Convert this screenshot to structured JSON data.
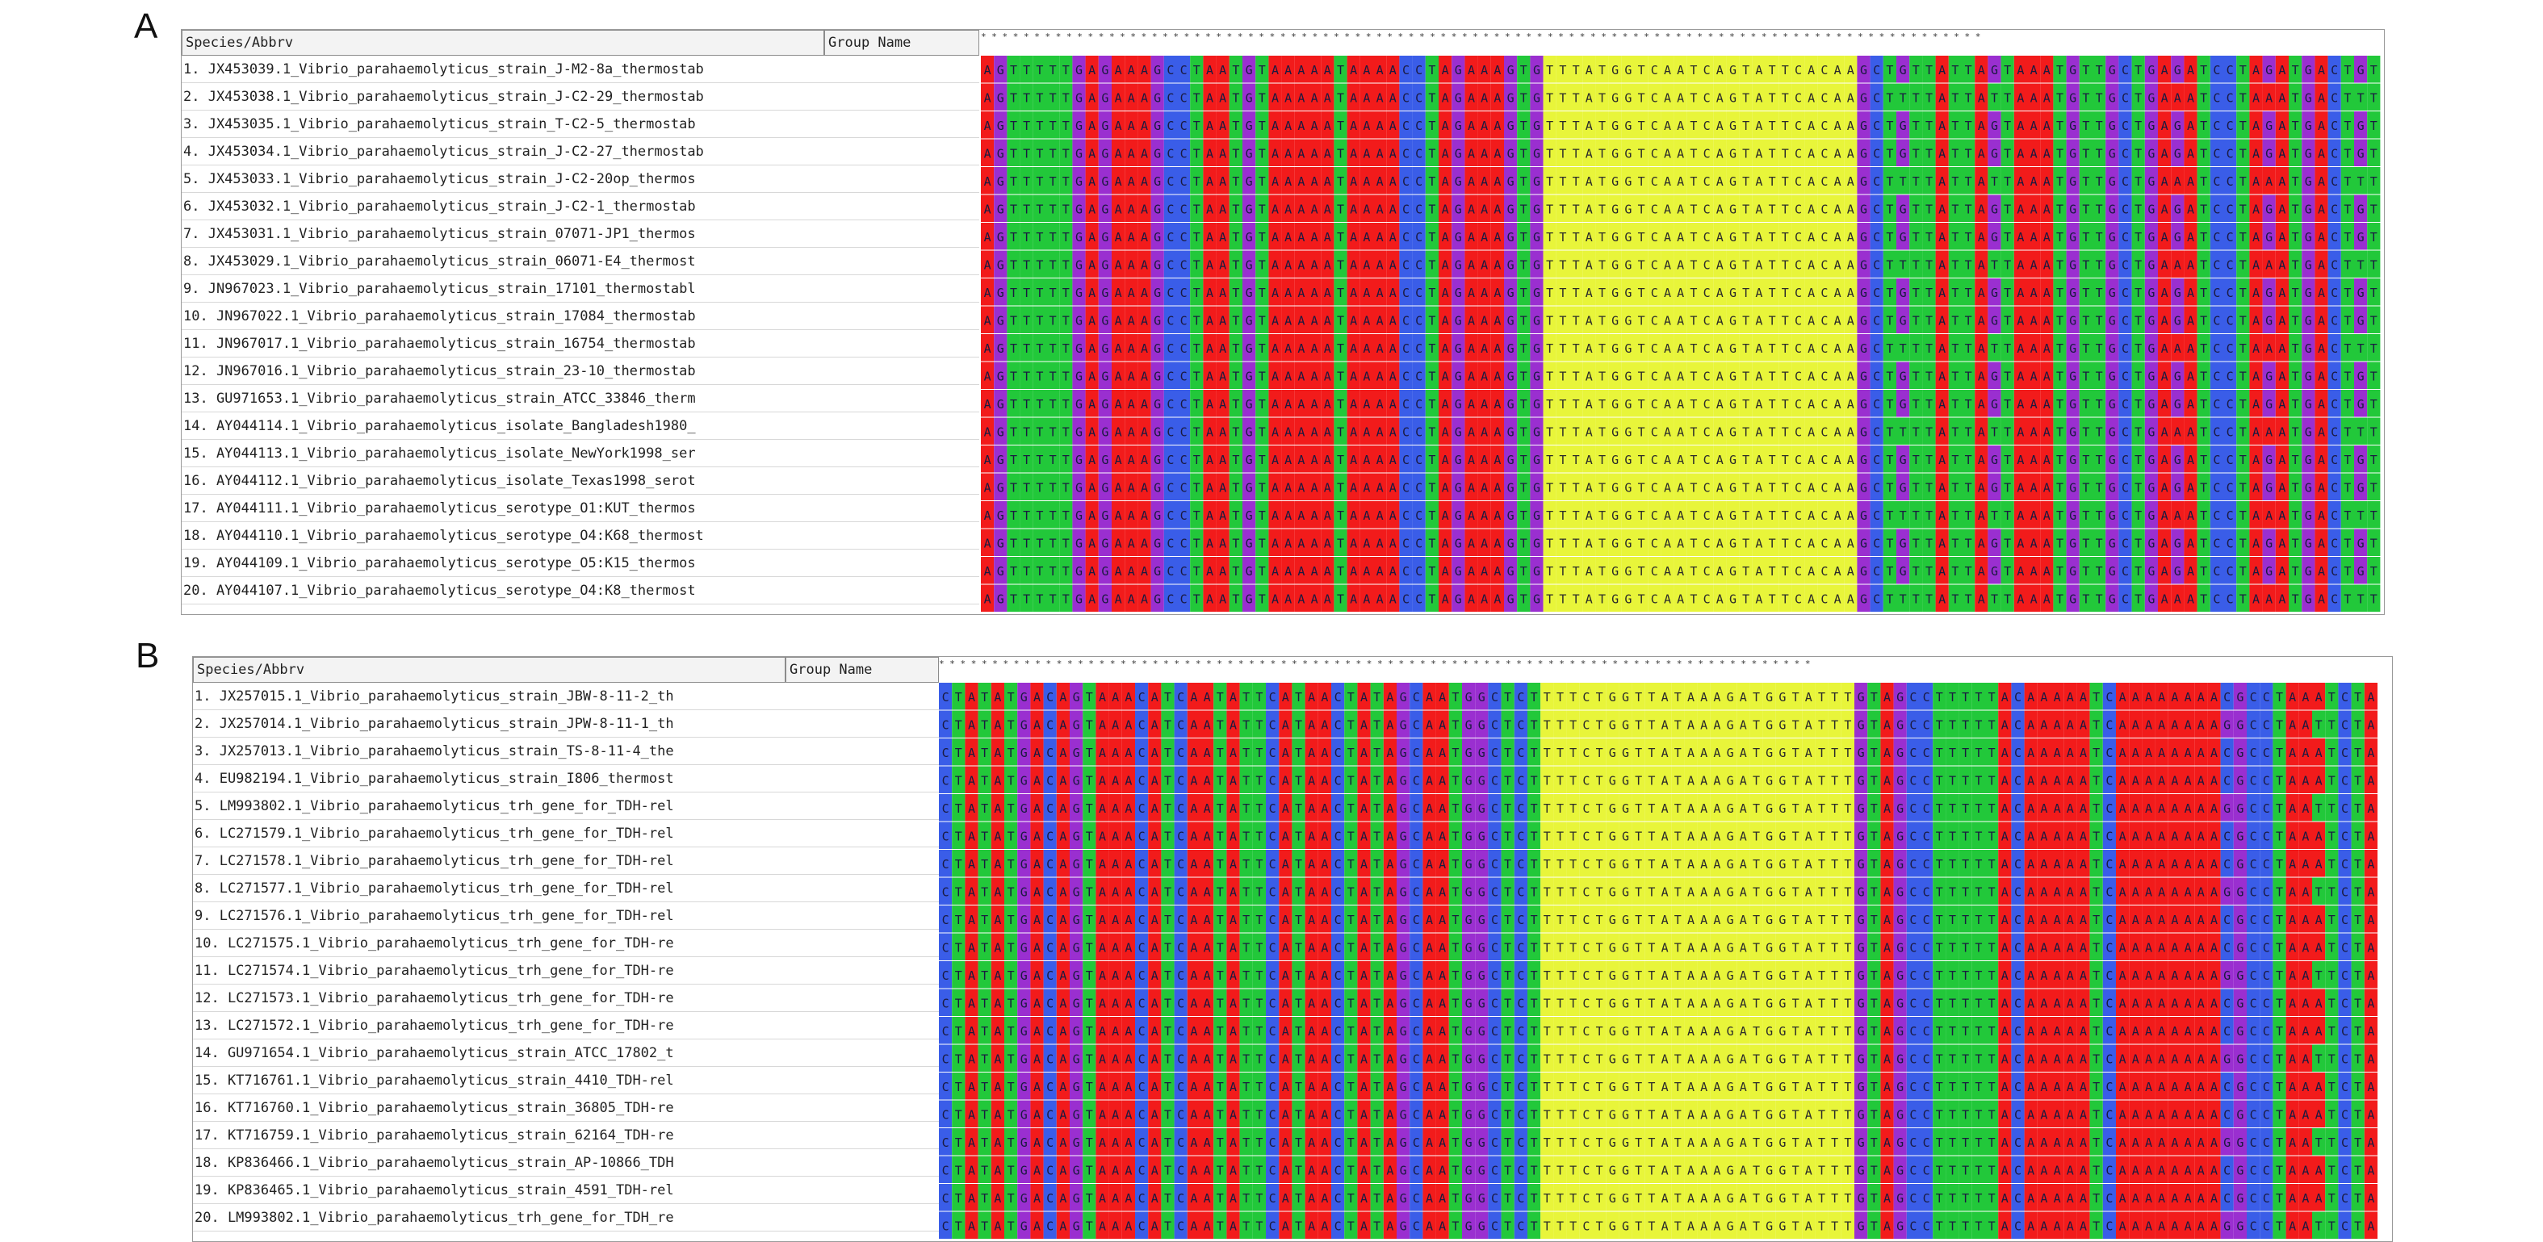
{
  "panels": [
    {
      "id": "A",
      "header": {
        "species": "Species/Abbrv",
        "group": "Group Name"
      },
      "ruler": "* * * * * * * * * * * * * * * * * * * * * * * * * * * * * * * * * * * * * * * * * *   * * * * * * * * * * * * * * * * * * * * * * * *   * * * * * *   * * * * * * * *   * * * * * * * * * * * * * *",
      "conserved_text": "TTTATGGTCAATCAGTATTCACAA",
      "rows": [
        "1. JX453039.1_Vibrio_parahaemolyticus_strain_J-M2-8a_thermostab",
        "2. JX453038.1_Vibrio_parahaemolyticus_strain_J-C2-29_thermostab",
        "3. JX453035.1_Vibrio_parahaemolyticus_strain_T-C2-5_thermostab",
        "4. JX453034.1_Vibrio_parahaemolyticus_strain_J-C2-27_thermostab",
        "5. JX453033.1_Vibrio_parahaemolyticus_strain_J-C2-20op_thermos",
        "6. JX453032.1_Vibrio_parahaemolyticus_strain_J-C2-1_thermostab",
        "7. JX453031.1_Vibrio_parahaemolyticus_strain_07071-JP1_thermos",
        "8. JX453029.1_Vibrio_parahaemolyticus_strain_06071-E4_thermost",
        "9. JN967023.1_Vibrio_parahaemolyticus_strain_17101_thermostabl",
        "10. JN967022.1_Vibrio_parahaemolyticus_strain_17084_thermostab",
        "11. JN967017.1_Vibrio_parahaemolyticus_strain_16754_thermostab",
        "12. JN967016.1_Vibrio_parahaemolyticus_strain_23-10_thermostab",
        "13. GU971653.1_Vibrio_parahaemolyticus_strain_ATCC_33846_therm",
        "14. AY044114.1_Vibrio_parahaemolyticus_isolate_Bangladesh1980_",
        "15. AY044113.1_Vibrio_parahaemolyticus_isolate_NewYork1998_ser",
        "16. AY044112.1_Vibrio_parahaemolyticus_isolate_Texas1998_serot",
        "17. AY044111.1_Vibrio_parahaemolyticus_serotype_O1:KUT_thermos",
        "18. AY044110.1_Vibrio_parahaemolyticus_serotype_O4:K68_thermost",
        "19. AY044109.1_Vibrio_parahaemolyticus_serotype_O5:K15_thermos",
        "20. AY044107.1_Vibrio_parahaemolyticus_serotype_O4:K8_thermost"
      ],
      "block_seq": "AGTTTTTGAGAAAGCCTAATGTAAAAATAAAACCTAGAAAGTGTTTATGGTCAATCAGTATTCACAAGCTGTTATTAGTAAATGTTGCTGAGATCCTAGATGACTGT"
    },
    {
      "id": "B",
      "header": {
        "species": "Species/Abbrv",
        "group": "Group Name"
      },
      "ruler": "* * * * * * * * * * * * * * * * * * * * * * * * * * * *   * * * * * * *   * * * * *   * * * * * * * * * * * * * * * * * * * * * * * * * *   * * * * * * * * * * * * * * *   *",
      "conserved_text": "TTTCTGGTTATAAAGATGGTATTT",
      "rows": [
        "1. JX257015.1_Vibrio_parahaemolyticus_strain_JBW-8-11-2_th",
        "2. JX257014.1_Vibrio_parahaemolyticus_strain_JPW-8-11-1_th",
        "3. JX257013.1_Vibrio_parahaemolyticus_strain_TS-8-11-4_the",
        "4. EU982194.1_Vibrio_parahaemolyticus_strain_I806_thermost",
        "5. LM993802.1_Vibrio_parahaemolyticus_trh_gene_for_TDH-rel",
        "6. LC271579.1_Vibrio_parahaemolyticus_trh_gene_for_TDH-rel",
        "7. LC271578.1_Vibrio_parahaemolyticus_trh_gene_for_TDH-rel",
        "8. LC271577.1_Vibrio_parahaemolyticus_trh_gene_for_TDH-rel",
        "9. LC271576.1_Vibrio_parahaemolyticus_trh_gene_for_TDH-rel",
        "10. LC271575.1_Vibrio_parahaemolyticus_trh_gene_for_TDH-re",
        "11. LC271574.1_Vibrio_parahaemolyticus_trh_gene_for_TDH-re",
        "12. LC271573.1_Vibrio_parahaemolyticus_trh_gene_for_TDH-re",
        "13. LC271572.1_Vibrio_parahaemolyticus_trh_gene_for_TDH-re",
        "14. GU971654.1_Vibrio_parahaemolyticus_strain_ATCC_17802_t",
        "15. KT716761.1_Vibrio_parahaemolyticus_strain_4410_TDH-rel",
        "16. KT716760.1_Vibrio_parahaemolyticus_strain_36805_TDH-re",
        "17. KT716759.1_Vibrio_parahaemolyticus_strain_62164_TDH-re",
        "18. KP836466.1_Vibrio_parahaemolyticus_strain_AP-10866_TDH",
        "19. KP836465.1_Vibrio_parahaemolyticus_strain_4591_TDH-rel",
        "20. LM993802.1_Vibrio_parahaemolyticus_trh_gene_for_TDH_re"
      ],
      "block_seq": "CTATATGACAGTAAACATCAATATTCATAACTATAGCAATGGCTCTTTTCTGGTTATAAAGATGGTATTTGTAGCCTTTTTACAAAAATCAAAAAAAACGCCTAAAT"
    }
  ],
  "colors": {
    "A": "#f21b1b",
    "C": "#3a5de8",
    "G": "#9a2fd0",
    "T": "#22c83a",
    "cons_bg": "#e8f53a",
    "cons_text": "#2a2a2a",
    "letter": "#1a1a40"
  }
}
